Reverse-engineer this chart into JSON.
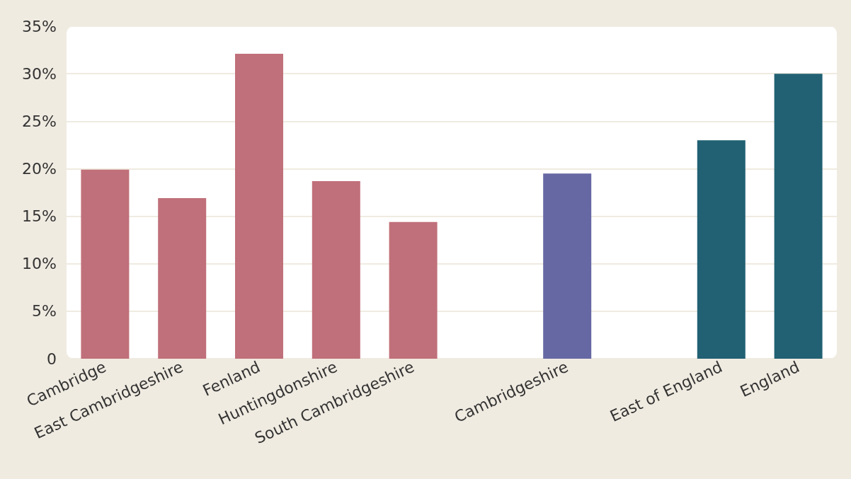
{
  "chart_data": {
    "type": "bar",
    "categories": [
      "Cambridge",
      "East Cambridgeshire",
      "Fenland",
      "Huntingdonshire",
      "South Cambridgeshire",
      null,
      "Cambridgeshire",
      null,
      "East of England",
      "England"
    ],
    "values": [
      19.9,
      16.9,
      32.1,
      18.7,
      14.4,
      null,
      19.5,
      null,
      23.0,
      30.0
    ],
    "colors": [
      "#c0707a",
      "#c0707a",
      "#c0707a",
      "#c0707a",
      "#c0707a",
      "#c0707a",
      "#6668a4",
      "#c0707a",
      "#216173",
      "#216173"
    ],
    "ylim": [
      0,
      35
    ],
    "yticks": [
      0,
      {
        "value": 5,
        "label": "5%"
      },
      {
        "value": 10,
        "label": "10%"
      },
      {
        "value": 15,
        "label": "15%"
      },
      {
        "value": 20,
        "label": "20%"
      },
      {
        "value": 25,
        "label": "25%"
      },
      {
        "value": 30,
        "label": "30%"
      },
      {
        "value": 35,
        "label": "35%"
      }
    ],
    "grid": "y"
  }
}
